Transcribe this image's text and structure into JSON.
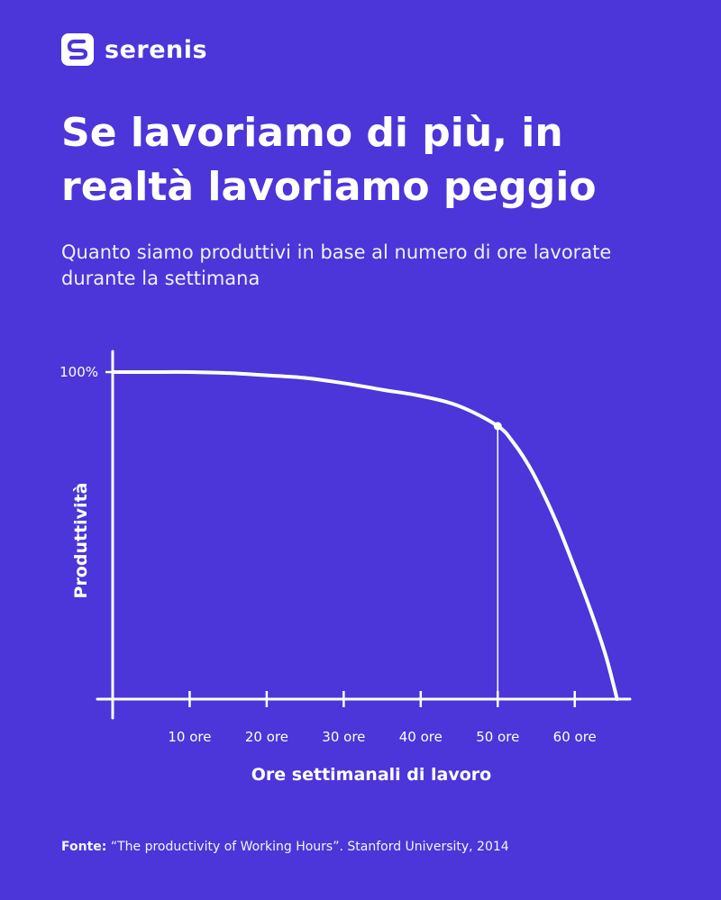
{
  "brand": {
    "name": "serenis",
    "logo_icon": "serenis-s-logo-icon"
  },
  "title": "Se lavoriamo di più, in realtà lavoriamo peggio",
  "subtitle": "Quanto siamo produttivi in base al numero di ore lavorate durante la settimana",
  "chart_data": {
    "type": "line",
    "title": "Se lavoriamo di più, in realtà lavoriamo peggio",
    "subtitle": "Quanto siamo produttivi in base al numero di ore lavorate durante la settimana",
    "xlabel": "Ore settimanali di lavoro",
    "ylabel": "Produttività",
    "x_tick_values": [
      10,
      20,
      30,
      40,
      50,
      60
    ],
    "x_tick_labels": [
      "10 ore",
      "20 ore",
      "30 ore",
      "40 ore",
      "50 ore",
      "60 ore"
    ],
    "y_tick_values": [
      100
    ],
    "y_tick_labels": [
      "100%"
    ],
    "xlim": [
      0,
      66
    ],
    "ylim": [
      0,
      100
    ],
    "grid": false,
    "series": [
      {
        "x": [
          0,
          5,
          10,
          15,
          20,
          25,
          30,
          35,
          40,
          45,
          50,
          52,
          54,
          56,
          58,
          60,
          62,
          64,
          65.5
        ],
        "y": [
          100,
          100,
          100,
          99.7,
          99,
          98.2,
          96.6,
          94.6,
          92.7,
          89.6,
          83.5,
          78.5,
          71.5,
          62.5,
          52,
          40,
          27.5,
          13.5,
          0
        ]
      }
    ],
    "annotations": [
      {
        "type": "vertical-marker",
        "x": 50,
        "y": 83.5
      }
    ],
    "colors": {
      "background": "#4c35d9",
      "line": "#ffffff"
    }
  },
  "source": {
    "label": "Fonte:",
    "text": " “The productivity of Working Hours”. Stanford University, 2014"
  }
}
